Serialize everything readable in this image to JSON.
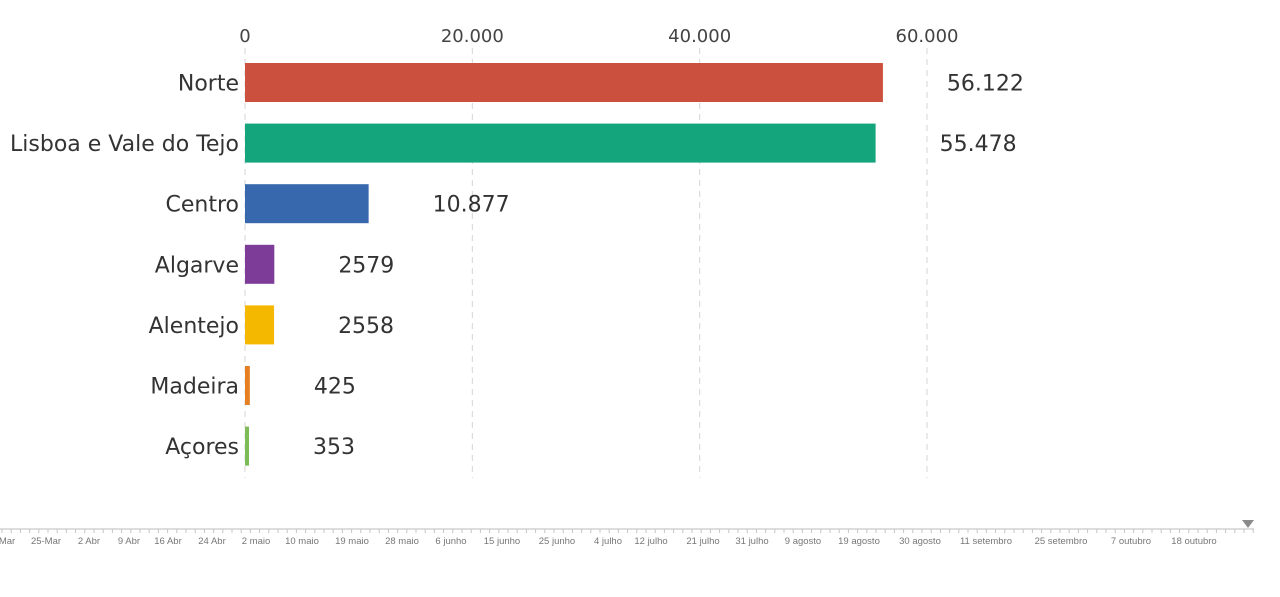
{
  "chart_data": {
    "type": "bar",
    "orientation": "horizontal",
    "categories": [
      "Norte",
      "Lisboa e Vale do Tejo",
      "Centro",
      "Algarve",
      "Alentejo",
      "Madeira",
      "Açores"
    ],
    "values": [
      56122,
      55478,
      10877,
      2579,
      2558,
      425,
      353
    ],
    "value_labels": [
      "56.122",
      "55.478",
      "10.877",
      "2579",
      "2558",
      "425",
      "353"
    ],
    "colors": [
      "#cb503e",
      "#14a57c",
      "#3768ad",
      "#7d3c98",
      "#f5b800",
      "#e67e22",
      "#7dbb58"
    ],
    "xlim": [
      0,
      60000
    ],
    "ticks": [
      0,
      20000,
      40000,
      60000
    ],
    "tick_labels": [
      "0",
      "20.000",
      "40.000",
      "60.000"
    ],
    "grid": true
  },
  "timeline": {
    "labels": [
      "Mar",
      "25-Mar",
      "2 Abr",
      "9 Abr",
      "16 Abr",
      "24 Abr",
      "2 maio",
      "10 maio",
      "19 maio",
      "28 maio",
      "6 junho",
      "15 junho",
      "25 junho",
      "4 julho",
      "12 julho",
      "21 julho",
      "31 julho",
      "9 agosto",
      "19 agosto",
      "30 agosto",
      "11 setembro",
      "25 setembro",
      "7 outubro",
      "18 outubro"
    ],
    "current_position": 1.0
  }
}
